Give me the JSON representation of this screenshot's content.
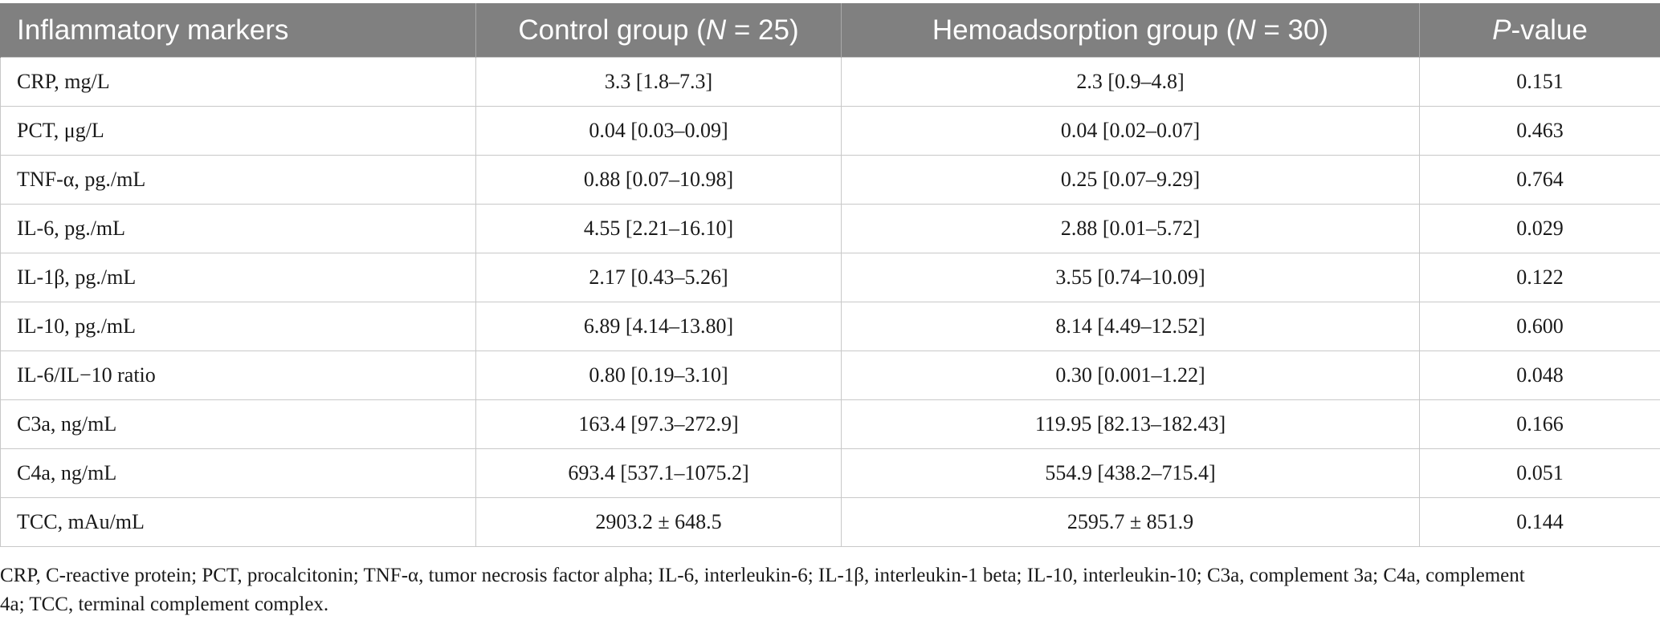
{
  "table": {
    "header": {
      "col1": "Inflammatory markers",
      "col2_prefix": "Control group (",
      "col2_n": "N",
      "col2_suffix": " = 25)",
      "col3_prefix": "Hemoadsorption group (",
      "col3_n": "N",
      "col3_suffix": " = 30)",
      "col4_p": "P",
      "col4_suffix": "-value"
    },
    "rows": [
      {
        "marker": "CRP, mg/L",
        "control": "3.3 [1.8–7.3]",
        "hemo": "2.3 [0.9–4.8]",
        "p": "0.151"
      },
      {
        "marker": "PCT, μg/L",
        "control": "0.04 [0.03–0.09]",
        "hemo": "0.04 [0.02–0.07]",
        "p": "0.463"
      },
      {
        "marker": "TNF-α, pg./mL",
        "control": "0.88 [0.07–10.98]",
        "hemo": "0.25 [0.07–9.29]",
        "p": "0.764"
      },
      {
        "marker": "IL-6, pg./mL",
        "control": "4.55 [2.21–16.10]",
        "hemo": "2.88 [0.01–5.72]",
        "p": "0.029"
      },
      {
        "marker": "IL-1β, pg./mL",
        "control": "2.17 [0.43–5.26]",
        "hemo": "3.55 [0.74–10.09]",
        "p": "0.122"
      },
      {
        "marker": "IL-10, pg./mL",
        "control": "6.89 [4.14–13.80]",
        "hemo": "8.14 [4.49–12.52]",
        "p": "0.600"
      },
      {
        "marker": "IL-6/IL−10 ratio",
        "control": "0.80 [0.19–3.10]",
        "hemo": "0.30 [0.001–1.22]",
        "p": "0.048"
      },
      {
        "marker": "C3a, ng/mL",
        "control": "163.4 [97.3–272.9]",
        "hemo": "119.95 [82.13–182.43]",
        "p": "0.166"
      },
      {
        "marker": "C4a, ng/mL",
        "control": "693.4 [537.1–1075.2]",
        "hemo": "554.9 [438.2–715.4]",
        "p": "0.051"
      },
      {
        "marker": "TCC, mAu/mL",
        "control": "2903.2 ± 648.5",
        "hemo": "2595.7 ± 851.9",
        "p": "0.144"
      }
    ]
  },
  "footnote": {
    "line1": "CRP, C-reactive protein; PCT, procalcitonin; TNF-α, tumor necrosis factor alpha; IL-6, interleukin-6; IL-1β, interleukin-1 beta; IL-10, interleukin-10; C3a, complement 3a; C4a, complement",
    "line2": "4a; TCC, terminal complement complex."
  },
  "colors": {
    "header_bg": "#808080",
    "header_text": "#ffffff",
    "grid": "#c8c8c8"
  }
}
